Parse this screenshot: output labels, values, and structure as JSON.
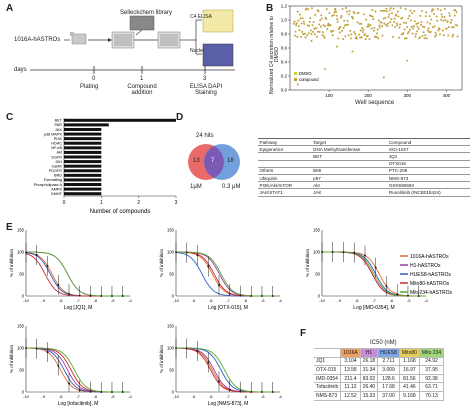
{
  "panelA": {
    "letter": "A",
    "cell_label": "1016A-hASTROs",
    "library_label": "Selleckchem library",
    "days_label": "days",
    "ticks": [
      "0",
      "1",
      "3"
    ],
    "steps": [
      "Plating",
      "Compound addition",
      "ELISA DAPI Staining"
    ],
    "mini_labels": [
      "C4 ELISA",
      "Nuclei"
    ]
  },
  "panelB": {
    "letter": "B",
    "ylabel": "Normalized C4 secretion relative to DMSO",
    "xlabel": "Well sequence",
    "yticks": [
      "0.0",
      "0.2",
      "0.4",
      "0.6",
      "0.8",
      "1.0",
      "1.2"
    ],
    "xticks": [
      "100",
      "200",
      "300",
      "400"
    ],
    "legend": [
      "DMSO",
      "compound"
    ],
    "colors": {
      "dmso": "#c8d432",
      "compound": "#c2a23c"
    }
  },
  "panelC": {
    "letter": "C",
    "xlabel": "Number of compounds",
    "xticks": [
      "0",
      "1",
      "2",
      "3"
    ],
    "categories": [
      "BET",
      "PAR",
      "JAK",
      "p38 MAPK",
      "PI3K",
      "HDAC",
      "NF-κB",
      "Akt",
      "EGFR",
      "IDH",
      "CaMK",
      "PDGFR",
      "BRD",
      "Formatting",
      "Phospholipase A",
      "AMPK",
      "DNMT"
    ],
    "values": [
      3,
      1.2,
      1,
      1,
      1,
      1,
      1,
      1,
      1,
      1,
      1,
      1,
      1,
      1,
      1,
      1,
      1
    ]
  },
  "panelD": {
    "letter": "D",
    "hits_label": "24 hits",
    "left_count": "13",
    "overlap_count": "7",
    "right_count": "18",
    "left_conc": "1μM",
    "right_conc": "0.3 μM",
    "headers": [
      "Pathway",
      "Target",
      "Compound"
    ],
    "rows": [
      [
        "Epigenetics",
        "DNA Methyltransferase",
        "SGI-1027"
      ],
      [
        "",
        "BET",
        "JQ1"
      ],
      [
        "",
        "",
        "OTX015"
      ],
      [
        "Others",
        "BMI",
        "PTC-209"
      ],
      [
        "Ubiquitin",
        "p97",
        "NMS-873"
      ],
      [
        "PI3K/Akt/mTOR",
        "Akt",
        "GSK690693"
      ],
      [
        "JAK/STAT1",
        "JAK",
        "Ruxolitinib (INCB018424)"
      ]
    ]
  },
  "panelE": {
    "letter": "E",
    "ylabel": "% of inhibition",
    "plots": [
      {
        "xlabel": "Log [JQ1], M"
      },
      {
        "xlabel": "Log [OTX-015], M"
      },
      {
        "xlabel": "Log [IMD-0354], M"
      },
      {
        "xlabel": "Log [tofacitinib], M"
      },
      {
        "xlabel": "Log [NMS-873], M"
      }
    ],
    "yticks": [
      "0",
      "50",
      "100",
      "150"
    ],
    "xticks": [
      "-10",
      "-9",
      "-8",
      "-7",
      "-6",
      "-5",
      "-4"
    ],
    "legend": [
      {
        "name": "1016A-hASTROs",
        "color": "#e8672c"
      },
      {
        "name": "H1-hASTROs",
        "color": "#9b3ea8"
      },
      {
        "name": "HUES8-hASTROs",
        "color": "#2b5fc4"
      },
      {
        "name": "Mito80-hASTROs",
        "color": "#cc2b2b"
      },
      {
        "name": "Mito234-hASTROs",
        "color": "#5aa832"
      }
    ]
  },
  "panelF": {
    "letter": "F",
    "title": "IC50 (nM)",
    "col_headers": [
      "1016A",
      "H1",
      "HUES8",
      "Mito80",
      "Mito 234"
    ],
    "col_colors": [
      "#f0a060",
      "#c88ad6",
      "#7da6e6",
      "#e6cc5a",
      "#9ed67a"
    ],
    "rows": [
      {
        "name": "JQ1",
        "vals": [
          "3.104",
          "26.18",
          "2.711",
          "1.168",
          "24.92"
        ]
      },
      {
        "name": "OTX-015",
        "vals": [
          "13.58",
          "31.34",
          "3.009",
          "16.97",
          "37.95"
        ]
      },
      {
        "name": "IMD-0354",
        "vals": [
          "211.4",
          "83.02",
          "128.6",
          "81.56",
          "92.38"
        ]
      },
      {
        "name": "Tofacitinib",
        "vals": [
          "11.12",
          "26.40",
          "17.68",
          "41.46",
          "63.71"
        ]
      },
      {
        "name": "NMS-873",
        "vals": [
          "12.52",
          "15.33",
          "37.00",
          "9.168",
          "70.13"
        ]
      }
    ]
  }
}
